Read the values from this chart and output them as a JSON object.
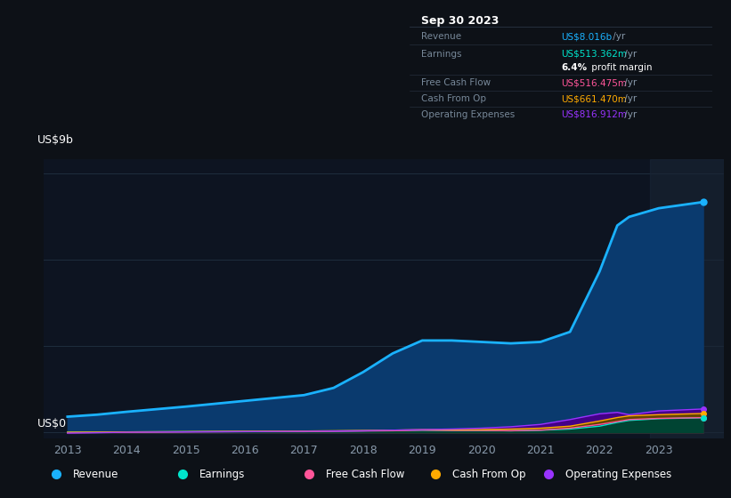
{
  "background_color": "#0d1117",
  "plot_bg_color": "#0d1421",
  "grid_color": "#1e2d3d",
  "text_color": "#8899aa",
  "title_color": "#ffffff",
  "ylabel_top": "US$9b",
  "ylabel_bottom": "US$0",
  "years": [
    2013,
    2013.5,
    2014,
    2015,
    2016,
    2017,
    2017.5,
    2018,
    2018.5,
    2019,
    2019.5,
    2020,
    2020.5,
    2021,
    2021.5,
    2022,
    2022.3,
    2022.5,
    2023,
    2023.75
  ],
  "revenue": [
    0.55,
    0.62,
    0.72,
    0.9,
    1.1,
    1.3,
    1.55,
    2.1,
    2.75,
    3.2,
    3.2,
    3.15,
    3.1,
    3.15,
    3.5,
    5.6,
    7.2,
    7.5,
    7.8,
    8.016
  ],
  "earnings": [
    0.01,
    0.01,
    0.02,
    0.03,
    0.04,
    0.04,
    0.05,
    0.06,
    0.07,
    0.08,
    0.07,
    0.07,
    0.06,
    0.08,
    0.12,
    0.22,
    0.35,
    0.42,
    0.48,
    0.513
  ],
  "free_cash_flow": [
    -0.01,
    0.0,
    0.01,
    0.02,
    0.03,
    0.03,
    0.04,
    0.05,
    0.06,
    0.08,
    0.07,
    0.07,
    0.06,
    0.08,
    0.15,
    0.28,
    0.38,
    0.45,
    0.49,
    0.516
  ],
  "cash_from_op": [
    0.01,
    0.01,
    0.02,
    0.03,
    0.04,
    0.05,
    0.06,
    0.07,
    0.08,
    0.1,
    0.1,
    0.1,
    0.12,
    0.15,
    0.22,
    0.4,
    0.52,
    0.58,
    0.62,
    0.661
  ],
  "op_expenses": [
    -0.02,
    -0.01,
    0.01,
    0.02,
    0.03,
    0.04,
    0.05,
    0.06,
    0.08,
    0.1,
    0.12,
    0.15,
    0.2,
    0.28,
    0.45,
    0.65,
    0.7,
    0.62,
    0.75,
    0.817
  ],
  "revenue_color": "#1ab2ff",
  "earnings_color": "#00e5cc",
  "fcf_color": "#ff5599",
  "cashop_color": "#ffaa00",
  "opex_color": "#9933ff",
  "revenue_fill": "#0a3a6e",
  "earnings_fill": "#004433",
  "fcf_fill": "#660033",
  "cashop_fill": "#664400",
  "opex_fill": "#440088",
  "tooltip_bg": "#060a10",
  "tooltip_border": "#2a3545",
  "tooltip_title": "Sep 30 2023",
  "tooltip_items": [
    {
      "label": "Revenue",
      "value": "US$8.016b /yr",
      "color": "#1ab2ff",
      "label_color": "#778899"
    },
    {
      "label": "Earnings",
      "value": "US$513.362m /yr",
      "color": "#00e5cc",
      "label_color": "#778899"
    },
    {
      "label": "",
      "value": "6.4% profit margin",
      "color": "#cccccc",
      "label_color": ""
    },
    {
      "label": "Free Cash Flow",
      "value": "US$516.475m /yr",
      "color": "#ff5599",
      "label_color": "#778899"
    },
    {
      "label": "Cash From Op",
      "value": "US$661.470m /yr",
      "color": "#ffaa00",
      "label_color": "#778899"
    },
    {
      "label": "Operating Expenses",
      "value": "US$816.912m /yr",
      "color": "#9933ff",
      "label_color": "#778899"
    }
  ],
  "legend_items": [
    {
      "label": "Revenue",
      "color": "#1ab2ff"
    },
    {
      "label": "Earnings",
      "color": "#00e5cc"
    },
    {
      "label": "Free Cash Flow",
      "color": "#ff5599"
    },
    {
      "label": "Cash From Op",
      "color": "#ffaa00"
    },
    {
      "label": "Operating Expenses",
      "color": "#9933ff"
    }
  ],
  "xlim": [
    2012.6,
    2024.1
  ],
  "ylim": [
    -0.2,
    9.5
  ],
  "ytick_lines": [
    0,
    3,
    6,
    9
  ],
  "xticks": [
    2013,
    2014,
    2015,
    2016,
    2017,
    2018,
    2019,
    2020,
    2021,
    2022,
    2023
  ],
  "highlight_start": 2022.85
}
